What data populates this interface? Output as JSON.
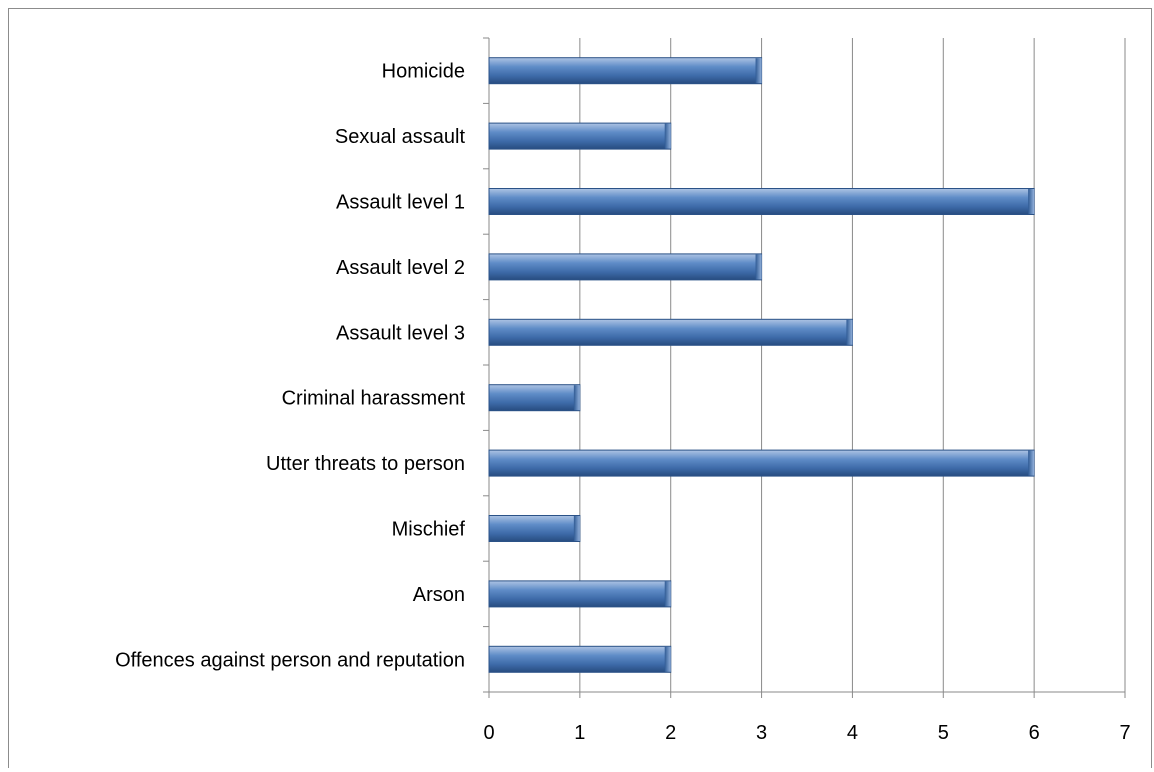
{
  "chart_data": {
    "type": "bar",
    "orientation": "horizontal",
    "title": "",
    "xlabel": "",
    "ylabel": "",
    "categories": [
      "Homicide",
      "Sexual assault",
      "Assault level 1",
      "Assault level 2",
      "Assault level 3",
      "Criminal harassment",
      "Utter threats to person",
      "Mischief",
      "Arson",
      "Offences against person and reputation"
    ],
    "values": [
      3,
      2,
      6,
      3,
      4,
      1,
      6,
      1,
      2,
      2
    ],
    "xlim": [
      0,
      7
    ],
    "x_ticks": [
      "0",
      "1",
      "2",
      "3",
      "4",
      "5",
      "6",
      "7"
    ],
    "grid": "vertical major gridlines",
    "legend": "none",
    "bar_color": "#4f81bd"
  }
}
